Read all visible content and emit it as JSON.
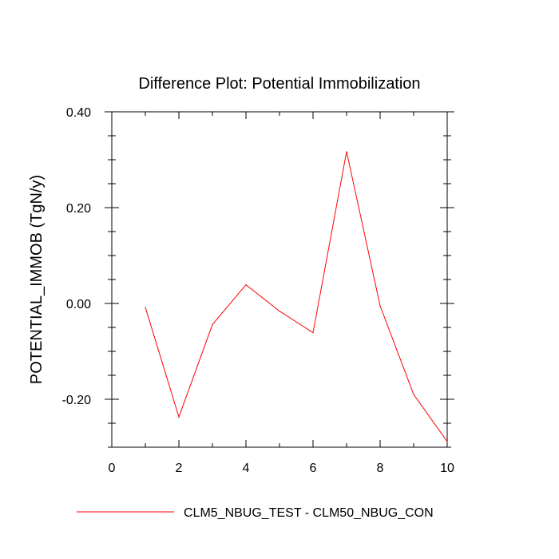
{
  "chart_data": {
    "type": "line",
    "title": "Difference Plot: Potential Immobilization",
    "xlabel": "",
    "ylabel": "POTENTIAL_IMMOB  (TgN/y)",
    "xlim": [
      0,
      10
    ],
    "ylim": [
      -0.3,
      0.4
    ],
    "x_ticks": [
      0,
      2,
      4,
      6,
      8,
      10
    ],
    "x_tick_labels": [
      "0",
      "2",
      "4",
      "6",
      "8",
      "10"
    ],
    "y_ticks": [
      0.4,
      0.2,
      0.0,
      -0.2
    ],
    "y_tick_labels": [
      "0.40",
      "0.20",
      "0.00",
      "-0.20"
    ],
    "grid": false,
    "legend_position": "bottom",
    "series": [
      {
        "name": "CLM5_NBUG_TEST - CLM50_NBUG_CON",
        "color": "#ff0000",
        "x": [
          1,
          2,
          3,
          4,
          5,
          6,
          7,
          8,
          9,
          10
        ],
        "y": [
          -0.008,
          -0.237,
          -0.044,
          0.039,
          -0.016,
          -0.061,
          0.317,
          -0.005,
          -0.19,
          -0.288
        ]
      }
    ]
  }
}
